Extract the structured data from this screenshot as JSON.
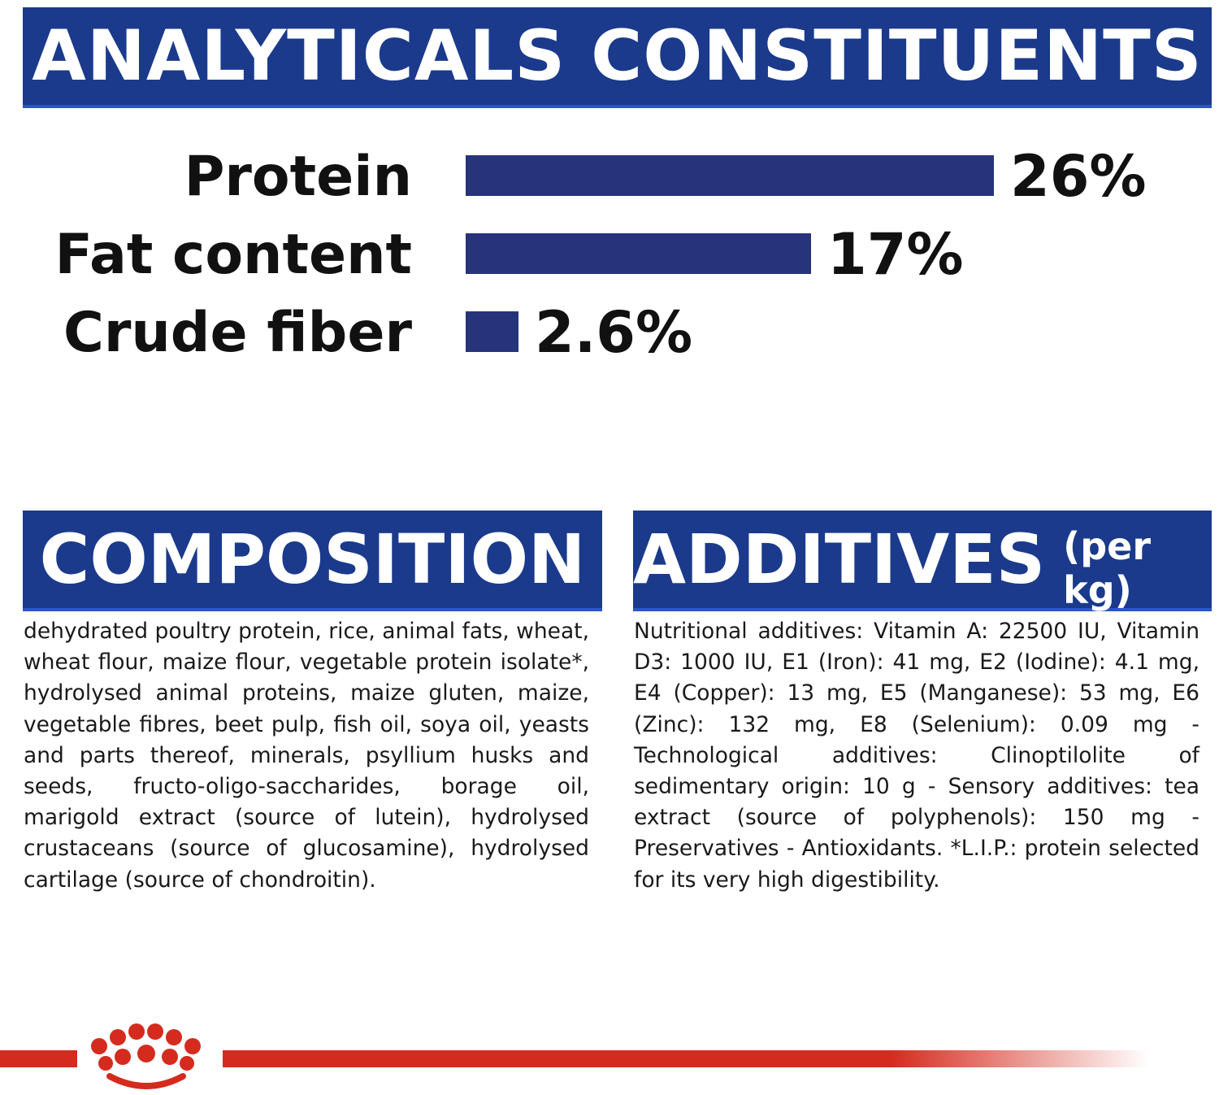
{
  "analyticals": {
    "title": "ANALYTICALS CONSTITUENTS"
  },
  "composition": {
    "title": "COMPOSITION",
    "text": "dehydrated poultry protein, rice, animal fats, wheat, wheat flour, maize flour, vegetable protein isolate*, hydrolysed animal proteins, maize gluten, maize, vegetable fibres, beet pulp, fish oil, soya oil, yeasts and parts thereof, minerals, psyllium husks and seeds, fructo-oligo-saccharides, borage oil, marigold extract (source of lutein), hydrolysed crustaceans (source of glucosamine), hydrolysed cartilage (source of chondroitin)."
  },
  "additives": {
    "title": "ADDITIVES",
    "subtitle": "(per kg)",
    "text": "Nutritional additives: Vitamin A: 22500 IU, Vitamin D3: 1000 IU, E1 (Iron): 41 mg, E2 (Iodine): 4.1 mg, E4 (Copper): 13 mg, E5 (Manganese): 53 mg, E6 (Zinc): 132 mg, E8 (Selenium): 0.09 mg - Technological additives: Clinoptilolite of sedimentary origin: 10 g - Sensory additives: tea extract (source of polyphenols): 150 mg - Preservatives - Antioxidants. *L.I.P.: protein selected for its very high digestibility."
  },
  "colors": {
    "banner": "#1b3a8c",
    "bar": "#27337a",
    "brand_red": "#d52b1e"
  },
  "logo_icon": "crown-logo-icon",
  "chart_data": {
    "type": "bar",
    "orientation": "horizontal",
    "categories": [
      "Protein",
      "Fat content",
      "Crude fiber"
    ],
    "values": [
      26,
      17,
      2.6
    ],
    "value_labels": [
      "26%",
      "17%",
      "2.6%"
    ],
    "unit": "%",
    "xlim": [
      0,
      26
    ],
    "grid": false,
    "legend": "none"
  }
}
